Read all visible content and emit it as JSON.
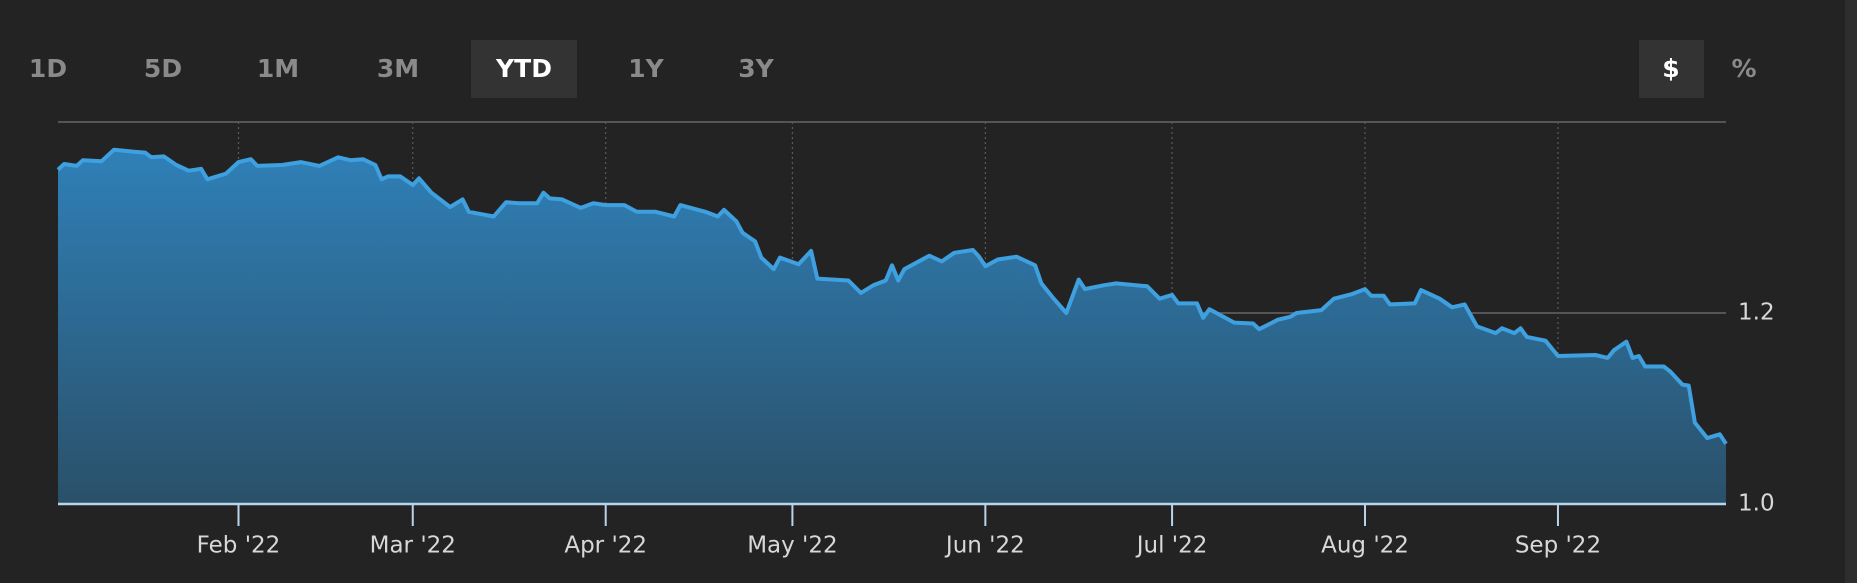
{
  "controls": {
    "ranges": [
      "1D",
      "5D",
      "1M",
      "3M",
      "YTD",
      "1Y",
      "3Y"
    ],
    "active_range_index": 4,
    "units": [
      "$",
      "%"
    ],
    "active_unit_index": 0
  },
  "chart_data": {
    "type": "area",
    "color": "#3fa0e0",
    "x": [
      3,
      4,
      6,
      7,
      10,
      12,
      15,
      17,
      18,
      20,
      22,
      24,
      26,
      27,
      30,
      32,
      34,
      35,
      39,
      42,
      45,
      48,
      50,
      52,
      54,
      55,
      56,
      58,
      60,
      61,
      63,
      66,
      68,
      69,
      73,
      75,
      77,
      80,
      81,
      82,
      84,
      87,
      89,
      91,
      94,
      96,
      99,
      102,
      103,
      107,
      109,
      110,
      112,
      113,
      115,
      116,
      118,
      119,
      122,
      124,
      125,
      130,
      132,
      134,
      136,
      137,
      138,
      139,
      143,
      145,
      147,
      150,
      151,
      152,
      154,
      157,
      160,
      161,
      163,
      165,
      167,
      168,
      171,
      173,
      178,
      180,
      182,
      183,
      186,
      187,
      188,
      192,
      195,
      196,
      199,
      201,
      202,
      206,
      208,
      211,
      213,
      214,
      216,
      217,
      221,
      222,
      225,
      227,
      229,
      231,
      234,
      235,
      237,
      238,
      239,
      242,
      244,
      250,
      252,
      253,
      255,
      256,
      257,
      258,
      261,
      262,
      264,
      265,
      266,
      268,
      270,
      271
    ],
    "values": [
      1.35,
      1.356,
      1.354,
      1.36,
      1.359,
      1.371,
      1.369,
      1.368,
      1.363,
      1.364,
      1.355,
      1.349,
      1.351,
      1.34,
      1.346,
      1.358,
      1.361,
      1.354,
      1.355,
      1.358,
      1.354,
      1.363,
      1.36,
      1.361,
      1.355,
      1.34,
      1.343,
      1.343,
      1.334,
      1.341,
      1.326,
      1.311,
      1.319,
      1.306,
      1.301,
      1.316,
      1.315,
      1.315,
      1.326,
      1.32,
      1.319,
      1.31,
      1.315,
      1.313,
      1.313,
      1.306,
      1.306,
      1.301,
      1.313,
      1.306,
      1.301,
      1.308,
      1.296,
      1.284,
      1.275,
      1.258,
      1.246,
      1.258,
      1.251,
      1.265,
      1.236,
      1.234,
      1.221,
      1.229,
      1.234,
      1.25,
      1.234,
      1.246,
      1.26,
      1.254,
      1.263,
      1.266,
      1.259,
      1.249,
      1.256,
      1.259,
      1.25,
      1.231,
      1.215,
      1.2,
      1.235,
      1.225,
      1.229,
      1.231,
      1.228,
      1.215,
      1.219,
      1.21,
      1.21,
      1.195,
      1.204,
      1.19,
      1.189,
      1.183,
      1.193,
      1.196,
      1.2,
      1.203,
      1.215,
      1.22,
      1.225,
      1.218,
      1.218,
      1.209,
      1.21,
      1.224,
      1.215,
      1.206,
      1.209,
      1.186,
      1.179,
      1.184,
      1.179,
      1.184,
      1.175,
      1.171,
      1.155,
      1.156,
      1.153,
      1.161,
      1.17,
      1.153,
      1.155,
      1.144,
      1.144,
      1.139,
      1.125,
      1.124,
      1.085,
      1.069,
      1.073,
      1.063
    ],
    "xlim": [
      3,
      271
    ],
    "xticks": [
      {
        "value": 32,
        "label": "Feb '22"
      },
      {
        "value": 60,
        "label": "Mar '22"
      },
      {
        "value": 91,
        "label": "Apr '22"
      },
      {
        "value": 121,
        "label": "May '22"
      },
      {
        "value": 152,
        "label": "Jun '22"
      },
      {
        "value": 182,
        "label": "Jul '22"
      },
      {
        "value": 213,
        "label": "Aug '22"
      },
      {
        "value": 244,
        "label": "Sep '22"
      }
    ],
    "ylim": [
      1.0,
      1.4
    ],
    "yticks": [
      {
        "value": 1,
        "label": "1.0"
      },
      1.2
    ],
    "grid": true
  }
}
